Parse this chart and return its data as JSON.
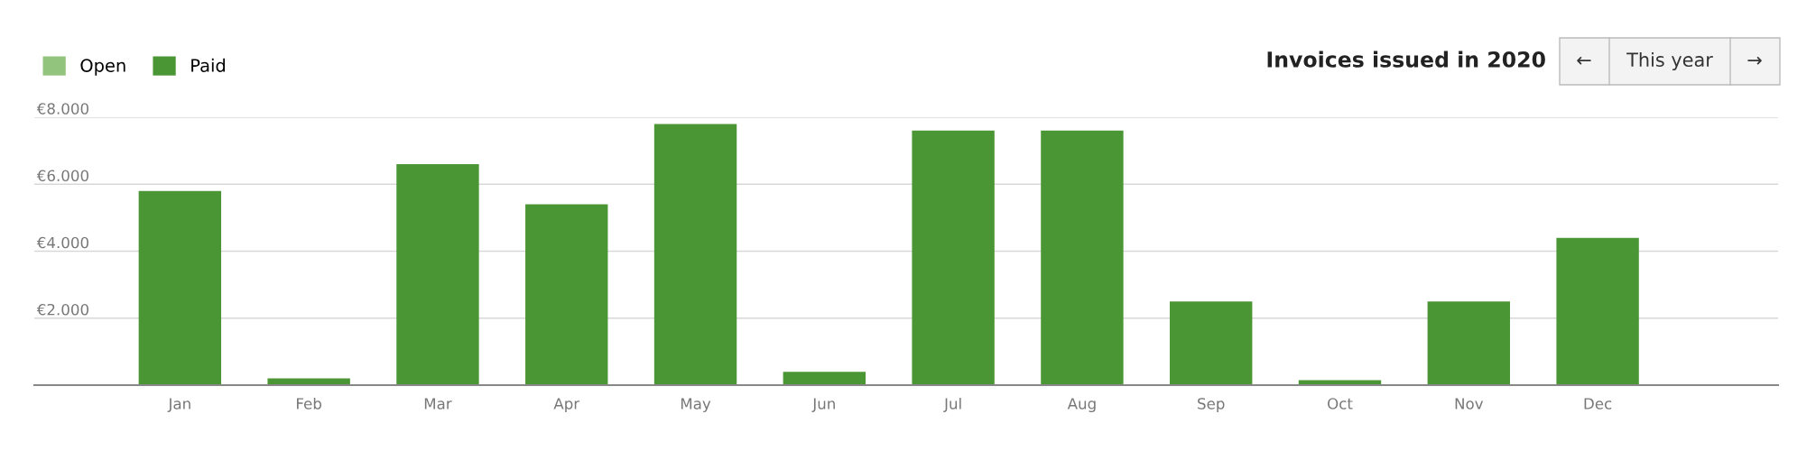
{
  "chart_data": {
    "type": "bar",
    "title": "Invoices issued in 2020",
    "categories": [
      "Jan",
      "Feb",
      "Mar",
      "Apr",
      "May",
      "Jun",
      "Jul",
      "Aug",
      "Sep",
      "Oct",
      "Nov",
      "Dec"
    ],
    "series": [
      {
        "name": "Open",
        "color": "#93c47d",
        "values": [
          null,
          null,
          null,
          null,
          null,
          null,
          null,
          null,
          null,
          null,
          null,
          null
        ]
      },
      {
        "name": "Paid",
        "color": "#4b9634",
        "values": [
          5800,
          200,
          6600,
          5400,
          7800,
          400,
          7600,
          7600,
          2500,
          150,
          2500,
          4400
        ]
      }
    ],
    "ylim": [
      0,
      8000
    ],
    "yticks": [
      {
        "value": 0,
        "label": null
      },
      {
        "value": 2000,
        "label": "€2.000"
      },
      {
        "value": 4000,
        "label": "€4.000"
      },
      {
        "value": 6000,
        "label": "€6.000"
      },
      {
        "value": 8000,
        "label": "€8.000"
      }
    ],
    "grid": "y",
    "legend": "top left",
    "annotations": [
      "←",
      "This year",
      "→"
    ]
  }
}
